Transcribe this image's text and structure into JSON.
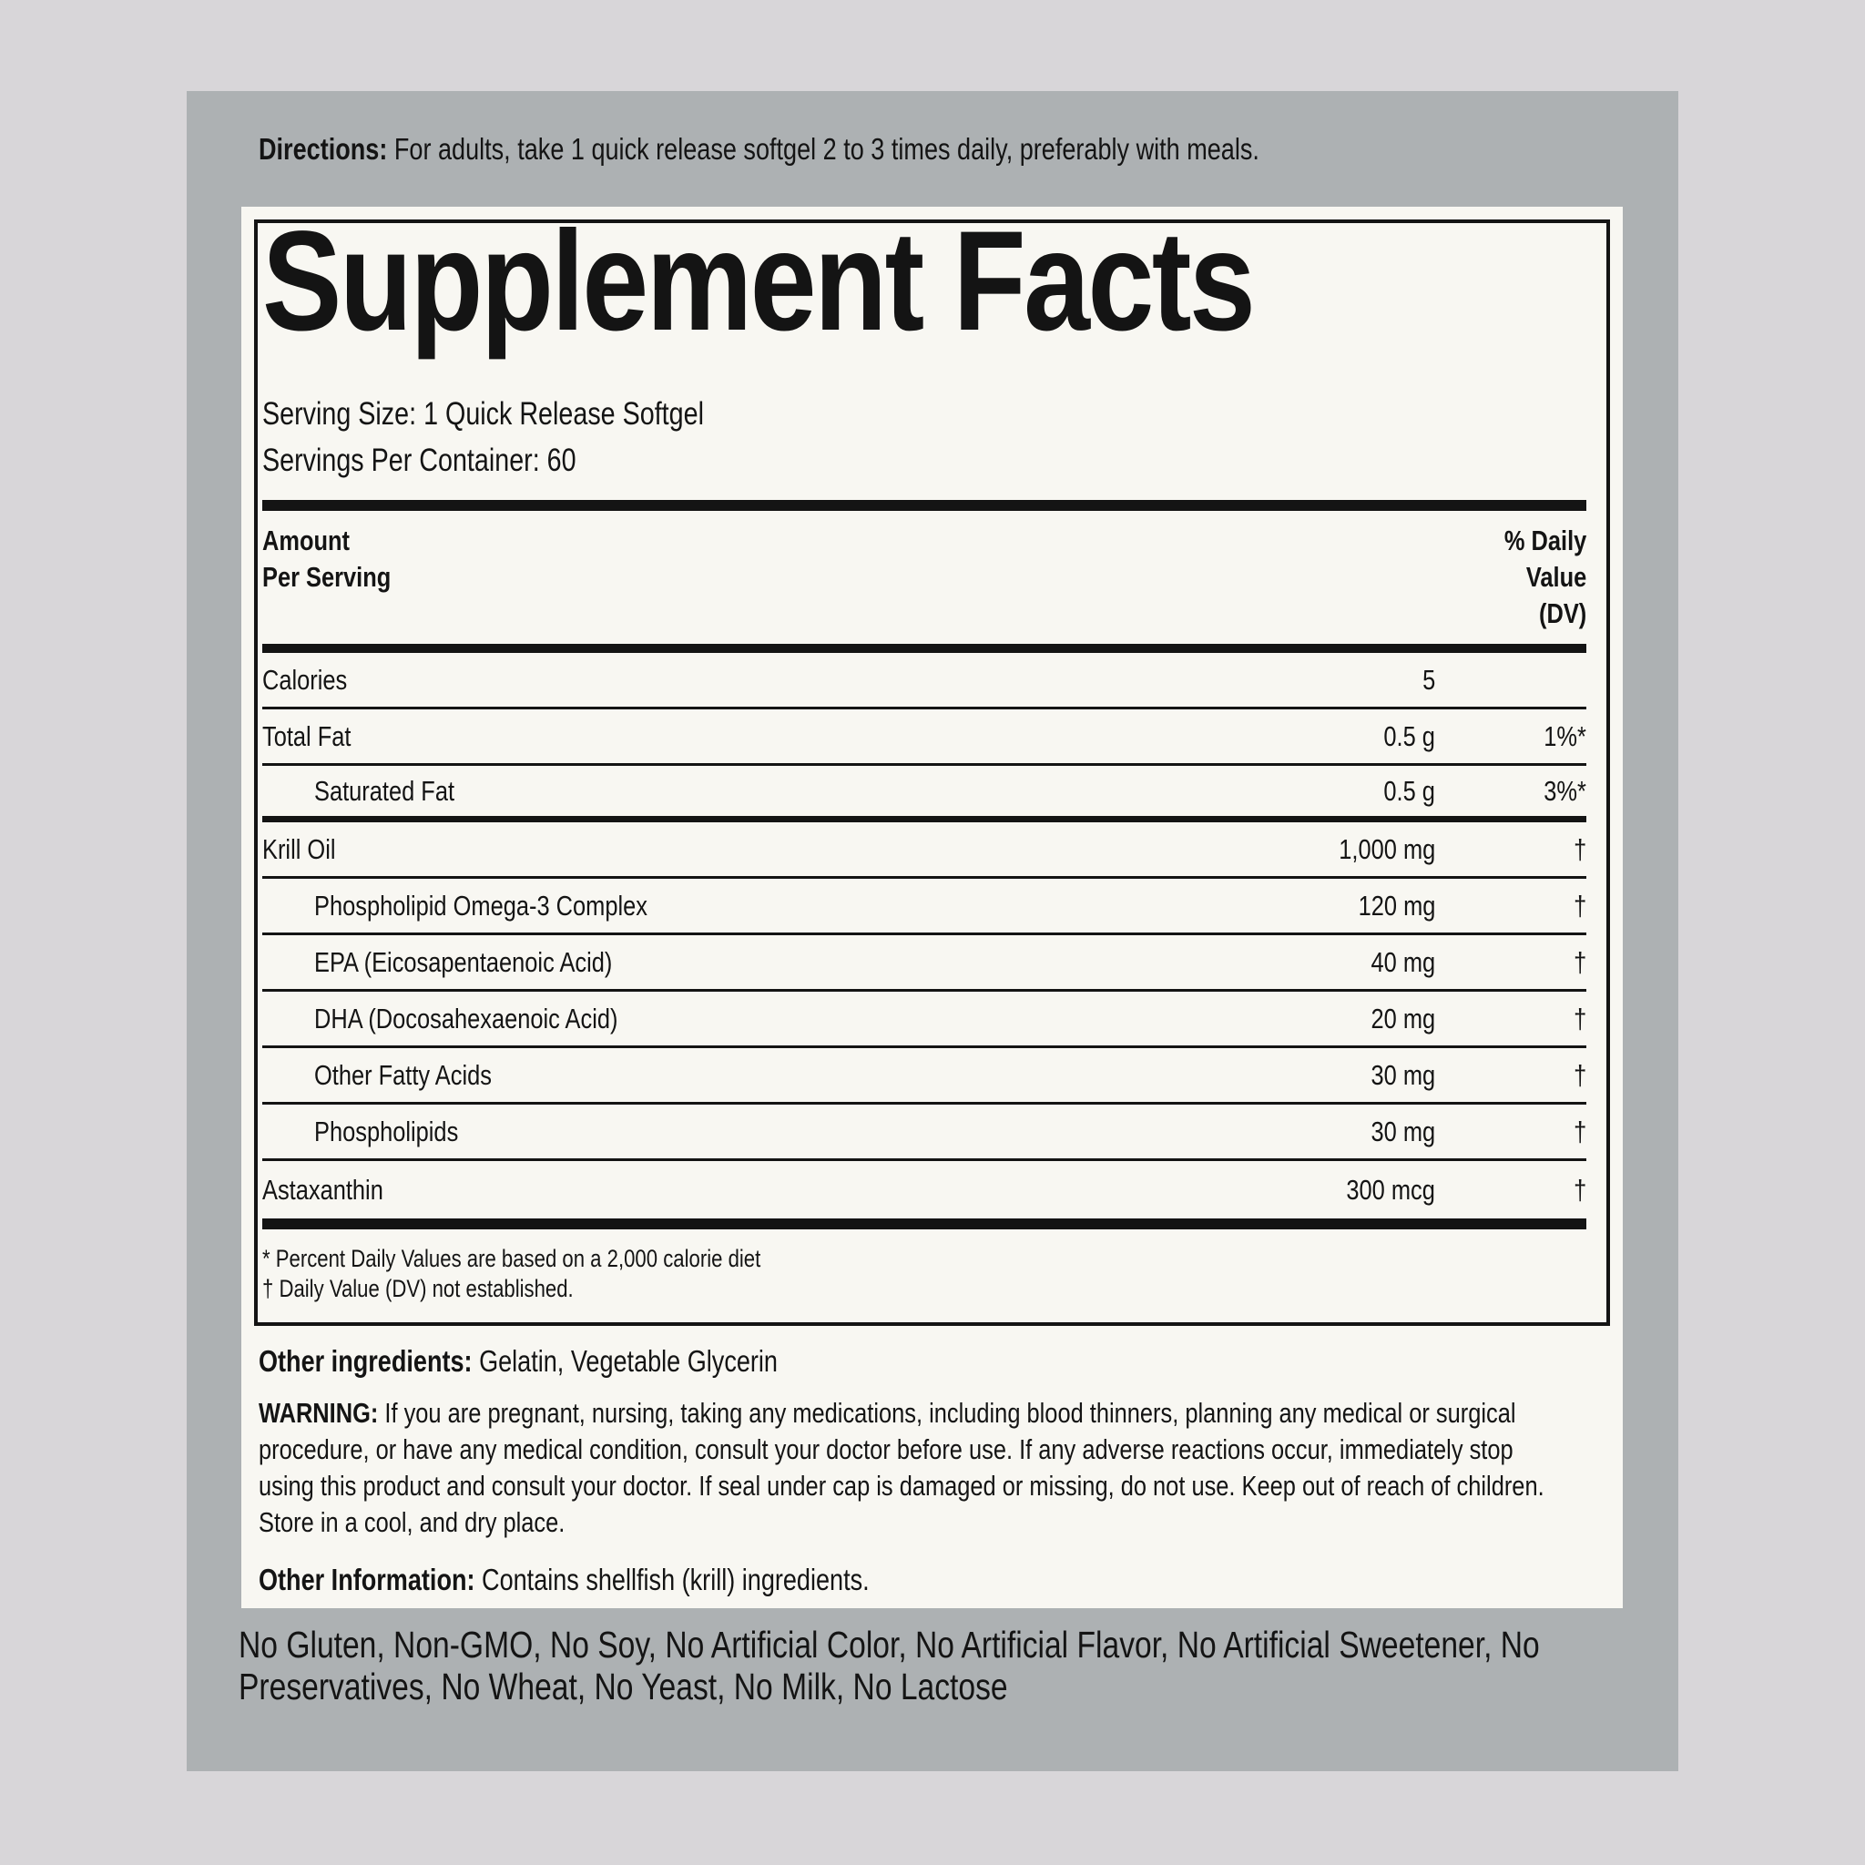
{
  "colors": {
    "page_bg": "#d8d6d9",
    "panel_bg": "#adb1b3",
    "label_bg": "#f8f7f2",
    "ink": "#141414"
  },
  "directions": {
    "label": "Directions:",
    "text": "For adults, take 1 quick release softgel 2 to 3 times daily, preferably with meals."
  },
  "supplement_facts": {
    "title": "Supplement Facts",
    "serving_size": "Serving Size: 1 Quick Release Softgel",
    "servings_per_container": "Servings Per Container: 60",
    "header": {
      "amount_line1": "Amount",
      "amount_line2": "Per Serving",
      "dv_line1": "% Daily",
      "dv_line2": "Value",
      "dv_line3": "(DV)"
    },
    "rows": [
      {
        "name": "Calories",
        "amount": "5",
        "dv": ""
      },
      {
        "name": "Total Fat",
        "amount": "0.5 g",
        "dv": "1%*"
      },
      {
        "name": "Saturated Fat",
        "amount": "0.5 g",
        "dv": "3%*"
      },
      {
        "name": "Krill Oil",
        "amount": "1,000 mg",
        "dv": "†"
      },
      {
        "name": "Phospholipid Omega-3 Complex",
        "amount": "120 mg",
        "dv": "†"
      },
      {
        "name": "EPA (Eicosapentaenoic Acid)",
        "amount": "40 mg",
        "dv": "†"
      },
      {
        "name": "DHA (Docosahexaenoic Acid)",
        "amount": "20 mg",
        "dv": "†"
      },
      {
        "name": "Other Fatty Acids",
        "amount": "30 mg",
        "dv": "†"
      },
      {
        "name": "Phospholipids",
        "amount": "30 mg",
        "dv": "†"
      },
      {
        "name": "Astaxanthin",
        "amount": "300 mcg",
        "dv": "†"
      }
    ],
    "footnotes": [
      "* Percent Daily Values are based on a 2,000 calorie diet",
      "† Daily Value (DV) not established."
    ]
  },
  "other_ingredients": {
    "label": "Other ingredients:",
    "text": "Gelatin, Vegetable Glycerin"
  },
  "warning": {
    "label": "WARNING:",
    "text": "If you are pregnant, nursing, taking any medications, including blood thinners, planning any medical or surgical procedure, or have any medical condition, consult your doctor before use. If any adverse reactions occur, immediately stop using this product and consult your doctor. If seal under cap is damaged or missing, do not use. Keep out of reach of children. Store in a cool, and dry place."
  },
  "other_information": {
    "label": "Other Information:",
    "text": "Contains shellfish (krill) ingredients."
  },
  "tagline": "No Gluten, Non-GMO, No Soy, No Artificial Color, No Artificial Flavor, No Artificial Sweetener, No Preservatives, No Wheat, No Yeast, No Milk, No Lactose"
}
